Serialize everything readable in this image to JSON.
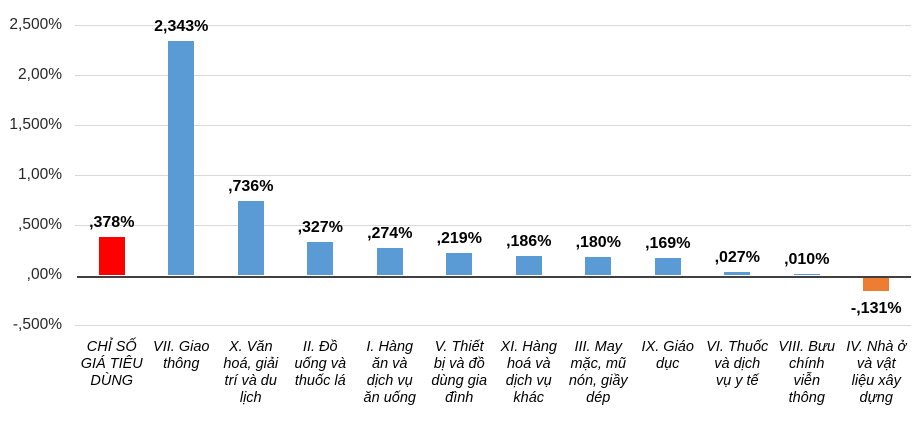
{
  "chart_data": {
    "type": "bar",
    "title": "",
    "xlabel": "",
    "ylabel": "",
    "grid": true,
    "legend": false,
    "ylim": [
      -0.5,
      2.5
    ],
    "categories": [
      "CHỈ SỐ GIÁ TIÊU DÙNG",
      "VII. Giao thông",
      "X. Văn hoá, giải trí và du lịch",
      "II. Đồ uống và thuốc lá",
      "I. Hàng ăn và dịch vụ ăn uống",
      "V. Thiết bị và đồ dùng gia đình",
      "XI. Hàng hoá và dịch vụ khác",
      "III. May mặc, mũ nón, giầy dép",
      "IX. Giáo dục",
      "VI. Thuốc và dịch vụ y tế",
      "VIII. Bưu chính viễn thông",
      "IV. Nhà ở và vật liệu xây dựng"
    ],
    "values": [
      0.378,
      2.343,
      0.736,
      0.327,
      0.274,
      0.219,
      0.186,
      0.18,
      0.169,
      0.027,
      0.01,
      -0.131
    ],
    "value_labels": [
      ",378%",
      "2,343%",
      ",736%",
      ",327%",
      ",274%",
      ",219%",
      ",186%",
      ",180%",
      ",169%",
      ",027%",
      ",010%",
      "-,131%"
    ],
    "bar_colors": [
      "#FF0000",
      "#5B9BD5",
      "#5B9BD5",
      "#5B9BD5",
      "#5B9BD5",
      "#5B9BD5",
      "#5B9BD5",
      "#5B9BD5",
      "#5B9BD5",
      "#5B9BD5",
      "#5B9BD5",
      "#ED7D31"
    ],
    "y_ticks": [
      {
        "value": 2.5,
        "label": "2,500%"
      },
      {
        "value": 2.0,
        "label": "2,00%"
      },
      {
        "value": 1.5,
        "label": "1,500%"
      },
      {
        "value": 1.0,
        "label": "1,00%"
      },
      {
        "value": 0.5,
        "label": ",500%"
      },
      {
        "value": 0.0,
        "label": ",00%"
      },
      {
        "value": -0.5,
        "label": "-,500%"
      }
    ],
    "colors": {
      "series_blue": "#5B9BD5",
      "highlight_red": "#FF0000",
      "negative_orange": "#ED7D31",
      "gridline": "#D9D9D9",
      "axis_line": "#404040",
      "tick_text": "#262626",
      "label_text": "#000000",
      "background": "#FFFFFF"
    }
  }
}
